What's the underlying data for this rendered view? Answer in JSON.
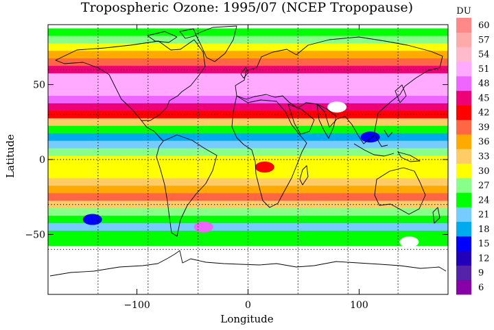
{
  "chart_data": {
    "type": "heatmap",
    "title": "Tropospheric Ozone: 1995/07 (NCEP Tropopause)",
    "xlabel": "Longitude",
    "ylabel": "Latitude",
    "xlim": [
      -180,
      180
    ],
    "ylim": [
      -90,
      90
    ],
    "x_ticks": [
      "−100",
      "0",
      "100"
    ],
    "x_tick_values": [
      -100,
      0,
      100
    ],
    "y_ticks": [
      "−50",
      "0",
      "50"
    ],
    "y_tick_values": [
      -50,
      0,
      50
    ],
    "grid": true,
    "grid_lons": [
      -135,
      -90,
      -45,
      0,
      45,
      90,
      135
    ],
    "grid_lats": [
      -60,
      -30,
      0,
      30,
      60
    ],
    "data_lat_range": [
      -57.5,
      87.5
    ],
    "colorbar": {
      "unit_label": "DU",
      "tick_labels": [
        "6",
        "9",
        "12",
        "15",
        "18",
        "21",
        "24",
        "27",
        "30",
        "33",
        "36",
        "39",
        "42",
        "45",
        "48",
        "51",
        "54",
        "57",
        "60"
      ],
      "levels": [
        6,
        9,
        12,
        15,
        18,
        21,
        24,
        27,
        30,
        33,
        36,
        39,
        42,
        45,
        48,
        51,
        54,
        57,
        60,
        63
      ],
      "colors": [
        "#8800a8",
        "#5522aa",
        "#2200bb",
        "#0000ff",
        "#00aaee",
        "#77ccff",
        "#00ff00",
        "#88ff88",
        "#ffff00",
        "#ffcc66",
        "#ffaa00",
        "#ff6644",
        "#ff0000",
        "#ee0077",
        "#ee66ff",
        "#ffaaff",
        "#ffbbcc",
        "#ffaaaa",
        "#ff8888"
      ]
    },
    "zonal_mean_du": [
      {
        "lat": 85,
        "du": 26
      },
      {
        "lat": 80,
        "du": 28
      },
      {
        "lat": 75,
        "du": 32
      },
      {
        "lat": 70,
        "du": 36
      },
      {
        "lat": 65,
        "du": 40
      },
      {
        "lat": 60,
        "du": 45
      },
      {
        "lat": 55,
        "du": 51
      },
      {
        "lat": 50,
        "du": 53
      },
      {
        "lat": 45,
        "du": 51
      },
      {
        "lat": 40,
        "du": 49
      },
      {
        "lat": 35,
        "du": 47
      },
      {
        "lat": 30,
        "du": 44
      },
      {
        "lat": 25,
        "du": 35
      },
      {
        "lat": 20,
        "du": 25
      },
      {
        "lat": 15,
        "du": 19
      },
      {
        "lat": 10,
        "du": 22
      },
      {
        "lat": 5,
        "du": 28
      },
      {
        "lat": 0,
        "du": 30
      },
      {
        "lat": -5,
        "du": 31
      },
      {
        "lat": -10,
        "du": 32
      },
      {
        "lat": -15,
        "du": 33
      },
      {
        "lat": -20,
        "du": 36
      },
      {
        "lat": -25,
        "du": 39
      },
      {
        "lat": -30,
        "du": 33
      },
      {
        "lat": -35,
        "du": 27
      },
      {
        "lat": -40,
        "du": 24
      },
      {
        "lat": -45,
        "du": 22
      },
      {
        "lat": -50,
        "du": 25
      },
      {
        "lat": -55,
        "du": 25
      }
    ],
    "regional_features": [
      {
        "lon": 80,
        "lat": 35,
        "du": 63,
        "note": "white patch (off-scale high) over Tibet/Himalaya"
      },
      {
        "lon": 145,
        "lat": -55,
        "du": 63,
        "note": "white patch near Macquarie region"
      },
      {
        "lon": -40,
        "lat": -45,
        "du": 50,
        "note": "magenta patch off Argentina"
      },
      {
        "lon": 15,
        "lat": -5,
        "du": 43,
        "note": "red patch over west-central Africa"
      },
      {
        "lon": 110,
        "lat": 15,
        "du": 17,
        "note": "blue low over SE Asia / western Pacific"
      },
      {
        "lon": -140,
        "lat": -40,
        "du": 16,
        "note": "blue lows over South Pacific"
      }
    ]
  }
}
